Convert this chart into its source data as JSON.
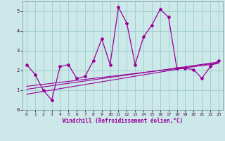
{
  "xlabel": "Windchill (Refroidissement éolien,°C)",
  "ylabel": "",
  "bg_color": "#cce8e8",
  "line_color": "#990099",
  "grid_color": "#99cccc",
  "x_data": [
    0,
    1,
    2,
    3,
    4,
    5,
    6,
    7,
    8,
    9,
    10,
    11,
    12,
    13,
    14,
    15,
    16,
    17,
    18,
    19,
    20,
    21,
    22,
    23
  ],
  "y_main": [
    2.3,
    1.8,
    1.0,
    0.5,
    2.2,
    2.3,
    1.6,
    1.7,
    2.5,
    3.6,
    2.3,
    5.2,
    4.4,
    2.3,
    3.7,
    4.3,
    5.1,
    4.7,
    2.1,
    2.1,
    2.05,
    1.6,
    2.2,
    2.5
  ],
  "y_reg1": [
    0.8,
    0.87,
    0.94,
    1.01,
    1.08,
    1.15,
    1.22,
    1.29,
    1.36,
    1.43,
    1.5,
    1.57,
    1.64,
    1.71,
    1.78,
    1.85,
    1.92,
    1.99,
    2.06,
    2.13,
    2.2,
    2.27,
    2.34,
    2.41
  ],
  "y_reg2": [
    1.05,
    1.11,
    1.17,
    1.23,
    1.29,
    1.35,
    1.41,
    1.47,
    1.53,
    1.59,
    1.65,
    1.71,
    1.77,
    1.83,
    1.89,
    1.95,
    2.01,
    2.07,
    2.13,
    2.19,
    2.25,
    2.31,
    2.37,
    2.43
  ],
  "y_reg3": [
    1.2,
    1.25,
    1.3,
    1.35,
    1.4,
    1.45,
    1.5,
    1.55,
    1.6,
    1.65,
    1.7,
    1.75,
    1.8,
    1.85,
    1.9,
    1.95,
    2.0,
    2.05,
    2.1,
    2.15,
    2.2,
    2.25,
    2.3,
    2.35
  ],
  "ylim": [
    0,
    5.5
  ],
  "xlim": [
    -0.5,
    23.5
  ],
  "yticks": [
    0,
    1,
    2,
    3,
    4,
    5
  ],
  "xticks": [
    0,
    1,
    2,
    3,
    4,
    5,
    6,
    7,
    8,
    9,
    10,
    11,
    12,
    13,
    14,
    15,
    16,
    17,
    18,
    19,
    20,
    21,
    22,
    23
  ]
}
